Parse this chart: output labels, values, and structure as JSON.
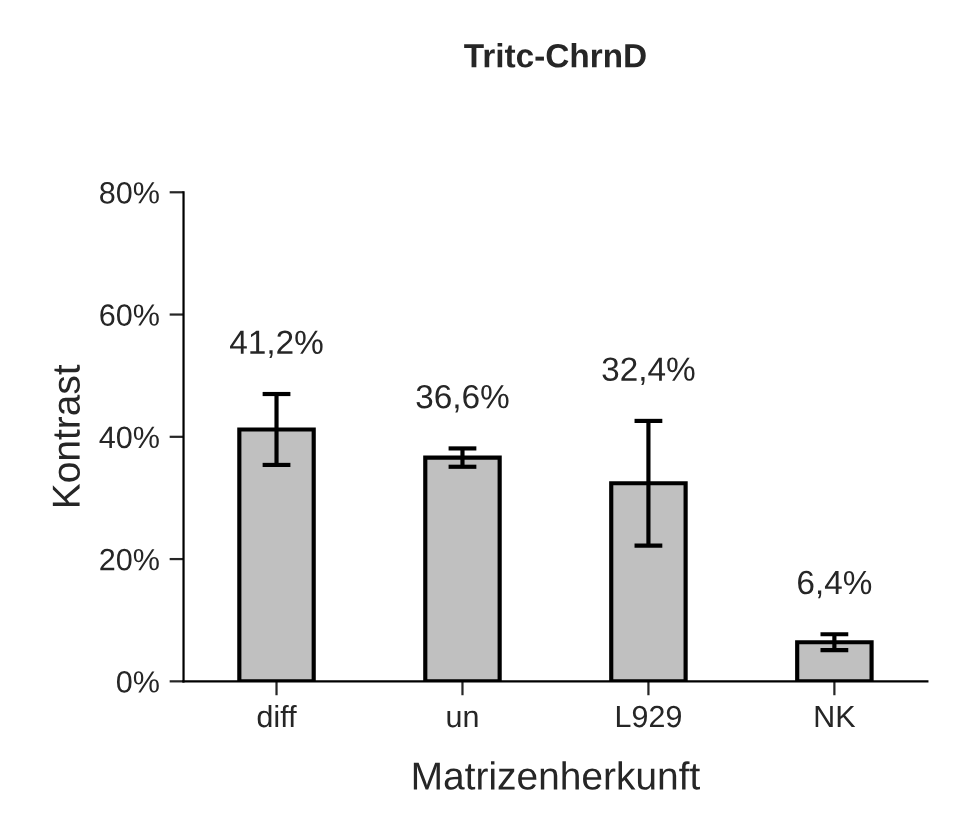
{
  "chart_data": {
    "type": "bar",
    "title": "Tritc-ChrnD",
    "xlabel": "Matrizenherkunft",
    "ylabel": "Kontrast",
    "categories": [
      "diff",
      "un",
      "L929",
      "NK"
    ],
    "values": [
      41.2,
      36.6,
      32.4,
      6.4
    ],
    "errors": [
      5.8,
      1.5,
      10.2,
      1.3
    ],
    "value_labels": [
      "41,2%",
      "36,6%",
      "32,4%",
      "6,4%"
    ],
    "color": "#c0c0c0",
    "ylim": [
      0,
      80
    ],
    "yticks": [
      {
        "value": 0,
        "label": "0%"
      },
      {
        "value": 20,
        "label": "20%"
      },
      {
        "value": 40,
        "label": "40%"
      },
      {
        "value": 60,
        "label": "60%"
      },
      {
        "value": 80,
        "label": "80%"
      }
    ],
    "grid": false,
    "legend": false
  }
}
